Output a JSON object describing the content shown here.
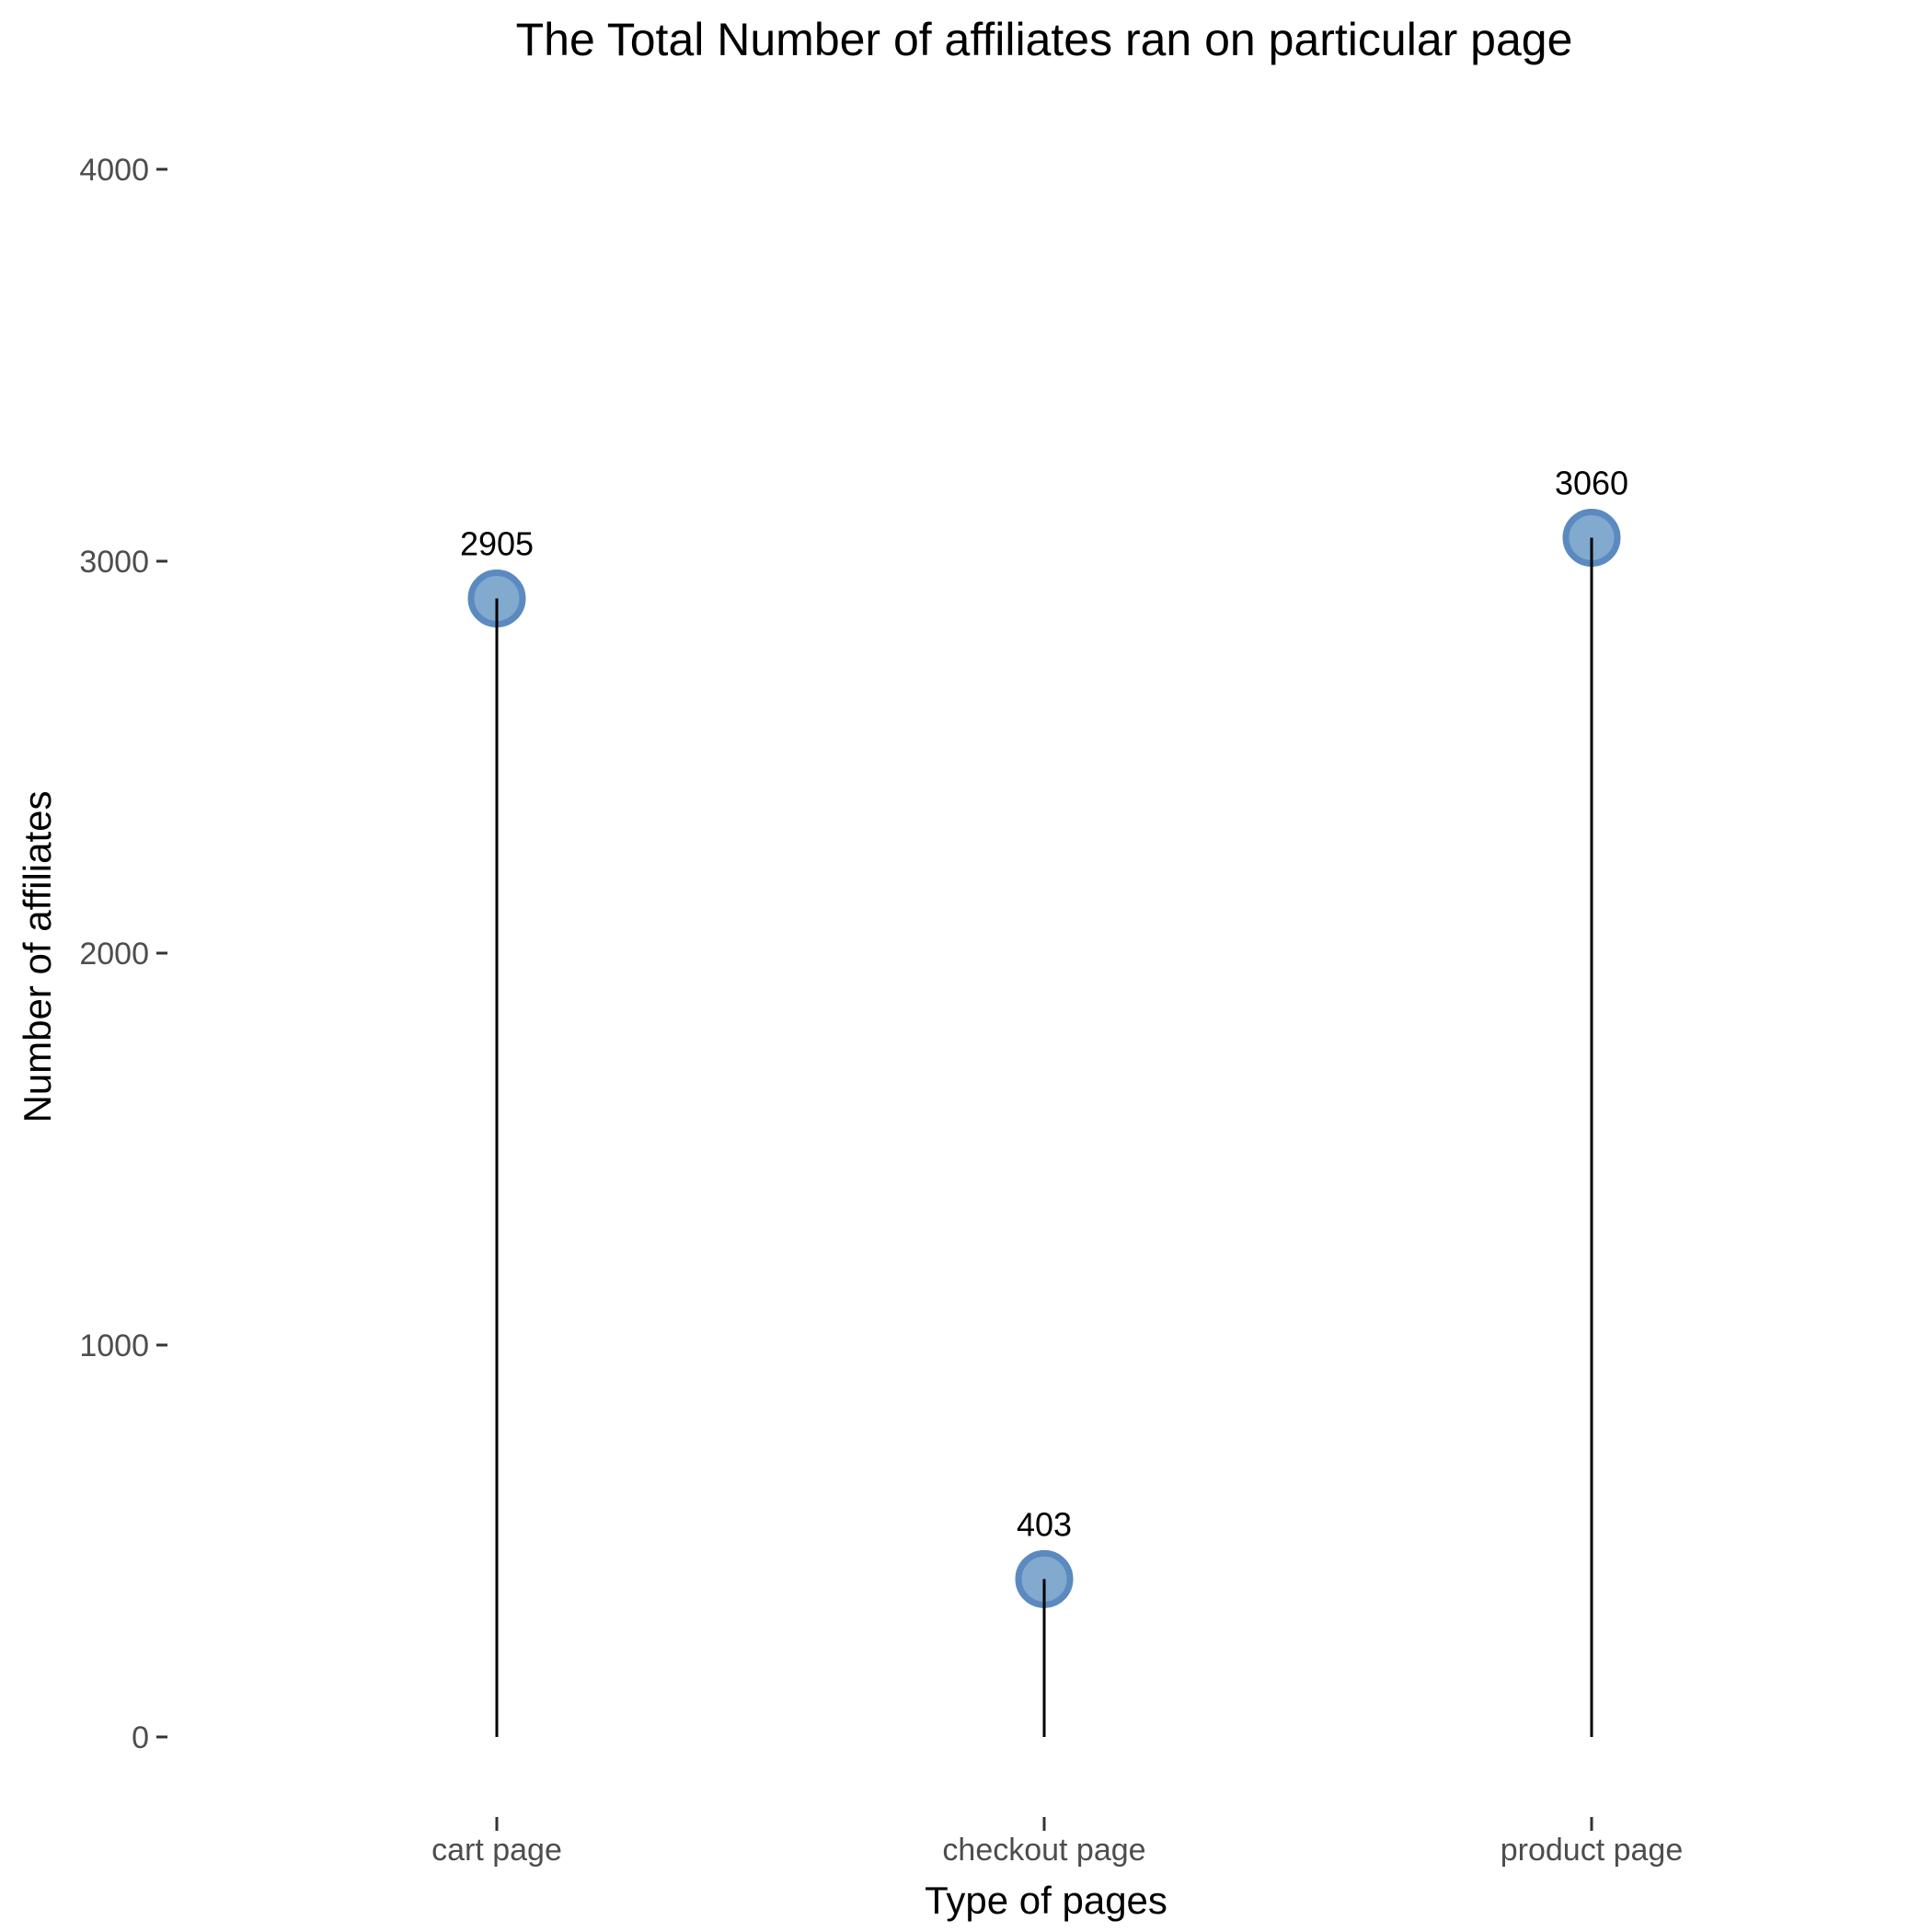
{
  "chart_data": {
    "type": "lollipop",
    "title": "The Total Number of affiliates ran on particular page",
    "xlabel": "Type of pages",
    "ylabel": "Number of affiliates",
    "categories": [
      "cart page",
      "checkout page",
      "product page"
    ],
    "values": [
      2905,
      403,
      3060
    ],
    "data_labels": [
      "2905",
      "403",
      "3060"
    ],
    "ylim": [
      0,
      4000
    ],
    "yticks": [
      0,
      1000,
      2000,
      3000,
      4000
    ],
    "ytick_labels": [
      "0",
      "1000",
      "2000",
      "3000",
      "4000"
    ],
    "grid": false,
    "legend": "none",
    "colors": {
      "point_fill": "#6c9ac6",
      "point_stroke": "#5b8ac0",
      "stem": "#000000"
    }
  }
}
